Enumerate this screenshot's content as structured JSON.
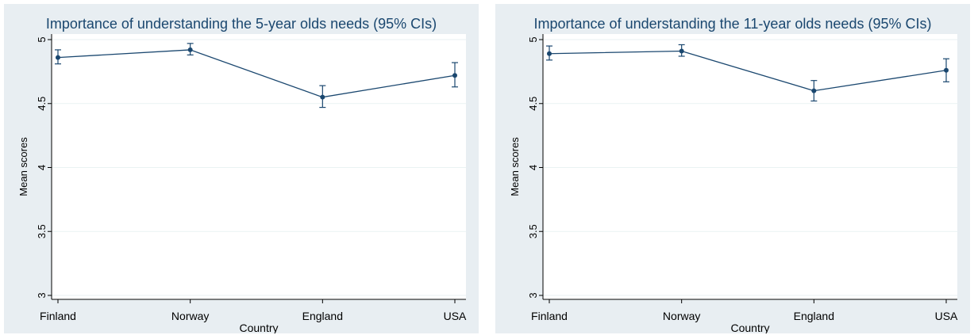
{
  "colors": {
    "panel_background": "#e8eef2",
    "plot_background": "#ffffff",
    "title_text": "#1a476f",
    "series_line": "#1a476f",
    "axis": "#000000",
    "gridline": "#eaf2f3"
  },
  "chart_data": [
    {
      "type": "line",
      "title": "Importance of understanding the 5-year olds needs (95% CIs)",
      "xlabel": "Country",
      "ylabel": "Mean scores",
      "categories": [
        "Finland",
        "Norway",
        "England",
        "USA"
      ],
      "yticks": [
        "3",
        "3.5",
        "4",
        "4.5",
        "5"
      ],
      "ylim": [
        3,
        5
      ],
      "grid": true,
      "series": [
        {
          "values": [
            4.86,
            4.92,
            4.55,
            4.72
          ],
          "ci_lower": [
            4.81,
            4.88,
            4.47,
            4.63
          ],
          "ci_upper": [
            4.92,
            4.97,
            4.64,
            4.82
          ]
        }
      ]
    },
    {
      "type": "line",
      "title": "Importance of understanding the 11-year olds needs (95% CIs)",
      "xlabel": "Country",
      "ylabel": "Mean scores",
      "categories": [
        "Finland",
        "Norway",
        "England",
        "USA"
      ],
      "yticks": [
        "3",
        "3.5",
        "4",
        "4.5",
        "5"
      ],
      "ylim": [
        3,
        5
      ],
      "grid": true,
      "series": [
        {
          "values": [
            4.89,
            4.91,
            4.6,
            4.76
          ],
          "ci_lower": [
            4.84,
            4.87,
            4.52,
            4.67
          ],
          "ci_upper": [
            4.95,
            4.96,
            4.68,
            4.85
          ]
        }
      ]
    }
  ]
}
